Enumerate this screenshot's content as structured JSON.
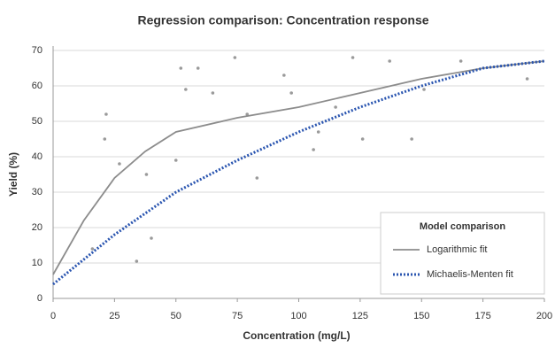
{
  "chart_data": {
    "type": "scatter",
    "title": "Regression comparison: Concentration response",
    "x_label": "Concentration (mg/L)",
    "y_label": "Yield (%)",
    "xlim": [
      0,
      200
    ],
    "ylim": [
      0,
      70
    ],
    "xticks": [
      0,
      25,
      50,
      75,
      100,
      125,
      150,
      175,
      200
    ],
    "yticks": [
      0,
      10,
      20,
      30,
      40,
      50,
      60,
      70
    ],
    "grid": true,
    "legend_title": "Model comparison",
    "legend_position": "lower right",
    "points": {
      "color": "#9a9a9a",
      "x": [
        21.6,
        21,
        27,
        34,
        40,
        38,
        52,
        54,
        59,
        65,
        74,
        79,
        83,
        94,
        97,
        106,
        108,
        115,
        122,
        126,
        137,
        146,
        151,
        166,
        193,
        16,
        50
      ],
      "values": [
        52,
        45,
        38,
        10.5,
        17,
        35,
        65,
        59,
        65,
        58,
        68,
        52,
        34,
        63,
        58,
        42,
        47,
        54,
        68,
        45,
        67,
        45,
        59,
        67,
        62,
        14,
        39
      ]
    },
    "series": [
      {
        "name": "Logarithmic fit",
        "color": "#8c8c8c",
        "style": "solid",
        "x": [
          0,
          12.5,
          25,
          37.5,
          50,
          75,
          100,
          125,
          150,
          175,
          200
        ],
        "values": [
          6.75,
          22,
          34,
          41.5,
          47,
          51,
          54,
          58,
          62,
          65,
          67
        ]
      },
      {
        "name": "Michaelis-Menten fit",
        "color": "#2a55b0",
        "style": "dotted",
        "x": [
          0,
          25,
          50,
          75,
          100,
          125,
          150,
          175,
          200
        ],
        "values": [
          4,
          18,
          30,
          39,
          47,
          54,
          60,
          65,
          67
        ]
      }
    ]
  }
}
